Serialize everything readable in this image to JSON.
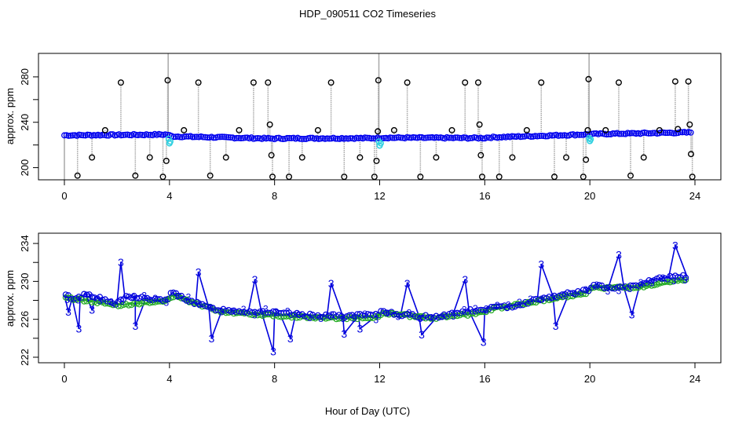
{
  "figure": {
    "title": "HDP_090511  CO2 Timeseries",
    "xlabel": "Hour of Day (UTC)"
  },
  "colors": {
    "raw": "#000000",
    "spike": "#a8a8a8",
    "smoothed": "#0000ee",
    "calibration": "#30d0e0",
    "line": "#0000dd",
    "fit": "#22aa22"
  },
  "chart_data": [
    {
      "type": "scatter",
      "panel": "top",
      "ylabel": "approx. ppm",
      "xlim": [
        0,
        24
      ],
      "ylim": [
        190,
        300
      ],
      "xticks": [
        0,
        4,
        8,
        12,
        16,
        20,
        24
      ],
      "xtick_labels": [
        "0",
        "4",
        "8",
        "12",
        "16",
        "20",
        "24"
      ],
      "yticks": [
        200,
        240,
        280
      ],
      "ytick_labels": [
        "200",
        "240",
        "280"
      ],
      "baseline": [
        [
          0.0,
          228.5
        ],
        [
          3.9,
          229.2
        ],
        [
          4.1,
          227.6
        ],
        [
          8.0,
          225.6
        ],
        [
          8.1,
          225.8
        ],
        [
          11.9,
          226.0
        ],
        [
          12.1,
          226.4
        ],
        [
          16.0,
          226.1
        ],
        [
          16.1,
          226.6
        ],
        [
          20.0,
          229.4
        ],
        [
          20.1,
          229.6
        ],
        [
          23.8,
          231.0
        ]
      ],
      "series": [
        {
          "name": "raw",
          "points": [
            [
              0.5,
              193
            ],
            [
              1.05,
              209
            ],
            [
              1.55,
              233
            ],
            [
              2.15,
              275
            ],
            [
              2.7,
              193
            ],
            [
              3.25,
              209
            ],
            [
              3.75,
              192
            ],
            [
              3.88,
              206
            ],
            [
              3.93,
              277
            ],
            [
              4.55,
              233
            ],
            [
              5.1,
              275
            ],
            [
              5.55,
              193
            ],
            [
              6.15,
              209
            ],
            [
              6.65,
              233
            ],
            [
              7.2,
              275
            ],
            [
              7.75,
              275
            ],
            [
              7.82,
              238
            ],
            [
              7.88,
              211
            ],
            [
              7.92,
              192
            ],
            [
              8.55,
              192
            ],
            [
              9.05,
              209
            ],
            [
              9.65,
              233
            ],
            [
              10.15,
              275
            ],
            [
              10.65,
              192
            ],
            [
              11.25,
              209
            ],
            [
              11.8,
              192
            ],
            [
              11.88,
              206
            ],
            [
              11.93,
              232
            ],
            [
              11.95,
              277
            ],
            [
              12.55,
              233
            ],
            [
              13.05,
              275
            ],
            [
              13.55,
              192
            ],
            [
              14.15,
              209
            ],
            [
              14.75,
              233
            ],
            [
              15.25,
              275
            ],
            [
              15.75,
              275
            ],
            [
              15.8,
              238
            ],
            [
              15.85,
              211
            ],
            [
              15.9,
              192
            ],
            [
              16.55,
              192
            ],
            [
              17.05,
              209
            ],
            [
              17.6,
              233
            ],
            [
              18.15,
              275
            ],
            [
              18.65,
              192
            ],
            [
              19.1,
              209
            ],
            [
              19.75,
              192
            ],
            [
              19.85,
              207
            ],
            [
              19.92,
              233
            ],
            [
              19.95,
              278
            ],
            [
              20.6,
              233
            ],
            [
              21.1,
              275
            ],
            [
              21.55,
              193
            ],
            [
              22.05,
              209
            ],
            [
              22.65,
              233
            ],
            [
              23.25,
              276
            ],
            [
              23.35,
              234
            ],
            [
              23.75,
              276
            ],
            [
              23.8,
              238
            ],
            [
              23.85,
              212
            ],
            [
              23.9,
              192
            ]
          ]
        },
        {
          "name": "calibration",
          "points": [
            [
              3.97,
              225.5
            ],
            [
              4.0,
              221.5
            ],
            [
              4.03,
              223.0
            ],
            [
              11.97,
              223.0
            ],
            [
              12.0,
              219.5
            ],
            [
              12.04,
              221.5
            ],
            [
              19.97,
              226.0
            ],
            [
              20.0,
              223.5
            ],
            [
              20.03,
              225.0
            ]
          ]
        }
      ]
    },
    {
      "type": "line",
      "panel": "bottom",
      "ylabel": "approx. ppm",
      "xlim": [
        0,
        24
      ],
      "ylim": [
        221.5,
        235
      ],
      "xticks": [
        0,
        4,
        8,
        12,
        16,
        20,
        24
      ],
      "xtick_labels": [
        "0",
        "4",
        "8",
        "12",
        "16",
        "20",
        "24"
      ],
      "yticks": [
        222,
        226,
        230,
        234
      ],
      "ytick_labels": [
        "222",
        "226",
        "230",
        "234"
      ],
      "marker_label": "3",
      "series": [
        {
          "name": "smoothed",
          "points": [
            [
              0.0,
              228.6
            ],
            [
              0.3,
              228.2
            ],
            [
              0.6,
              228.3
            ],
            [
              0.8,
              228.7
            ],
            [
              1.2,
              228.4
            ],
            [
              1.6,
              227.9
            ],
            [
              2.0,
              227.6
            ],
            [
              2.3,
              228.3
            ],
            [
              2.7,
              228.4
            ],
            [
              3.1,
              228.2
            ],
            [
              3.5,
              228.0
            ],
            [
              3.9,
              228.1
            ],
            [
              4.1,
              228.8
            ],
            [
              4.5,
              228.3
            ],
            [
              5.0,
              227.7
            ],
            [
              5.5,
              227.2
            ],
            [
              6.0,
              227.0
            ],
            [
              6.5,
              226.9
            ],
            [
              7.0,
              226.8
            ],
            [
              7.5,
              226.8
            ],
            [
              8.0,
              226.7
            ],
            [
              8.2,
              226.6
            ],
            [
              8.8,
              226.5
            ],
            [
              9.4,
              226.4
            ],
            [
              10.0,
              226.4
            ],
            [
              10.6,
              226.3
            ],
            [
              11.2,
              226.4
            ],
            [
              11.9,
              226.4
            ],
            [
              12.1,
              226.9
            ],
            [
              12.8,
              226.5
            ],
            [
              13.5,
              226.3
            ],
            [
              14.2,
              226.3
            ],
            [
              14.8,
              226.6
            ],
            [
              15.4,
              226.9
            ],
            [
              16.0,
              226.9
            ],
            [
              16.1,
              227.2
            ],
            [
              16.8,
              227.3
            ],
            [
              17.4,
              227.6
            ],
            [
              18.0,
              228.1
            ],
            [
              18.6,
              228.4
            ],
            [
              19.2,
              228.7
            ],
            [
              19.9,
              229.0
            ],
            [
              20.1,
              229.6
            ],
            [
              20.7,
              229.3
            ],
            [
              21.3,
              229.3
            ],
            [
              21.9,
              229.6
            ],
            [
              22.4,
              230.2
            ],
            [
              23.0,
              230.4
            ],
            [
              23.7,
              230.5
            ]
          ]
        },
        {
          "name": "fit",
          "points": [
            [
              0.0,
              228.3
            ],
            [
              2.0,
              227.5
            ],
            [
              3.9,
              227.9
            ],
            [
              4.1,
              228.5
            ],
            [
              6.0,
              226.8
            ],
            [
              8.0,
              226.4
            ],
            [
              10.0,
              226.1
            ],
            [
              11.9,
              226.2
            ],
            [
              12.1,
              226.7
            ],
            [
              14.0,
              226.1
            ],
            [
              16.0,
              226.7
            ],
            [
              16.1,
              227.0
            ],
            [
              18.0,
              227.9
            ],
            [
              19.9,
              228.8
            ],
            [
              20.1,
              229.3
            ],
            [
              22.0,
              229.4
            ],
            [
              23.7,
              230.2
            ]
          ]
        },
        {
          "name": "labelled spikes",
          "points": [
            [
              0.15,
              226.8
            ],
            [
              0.55,
              225.0
            ],
            [
              1.05,
              227.0
            ],
            [
              2.15,
              232.0
            ],
            [
              2.7,
              225.3
            ],
            [
              5.1,
              231.0
            ],
            [
              5.6,
              224.0
            ],
            [
              7.25,
              230.2
            ],
            [
              7.95,
              222.6
            ],
            [
              8.6,
              224.0
            ],
            [
              10.15,
              229.8
            ],
            [
              10.65,
              224.5
            ],
            [
              11.25,
              225.0
            ],
            [
              13.05,
              229.8
            ],
            [
              13.6,
              224.4
            ],
            [
              15.25,
              230.2
            ],
            [
              15.95,
              223.6
            ],
            [
              18.15,
              231.8
            ],
            [
              18.7,
              225.3
            ],
            [
              21.1,
              232.8
            ],
            [
              21.6,
              226.5
            ],
            [
              23.25,
              233.8
            ]
          ]
        }
      ]
    }
  ]
}
